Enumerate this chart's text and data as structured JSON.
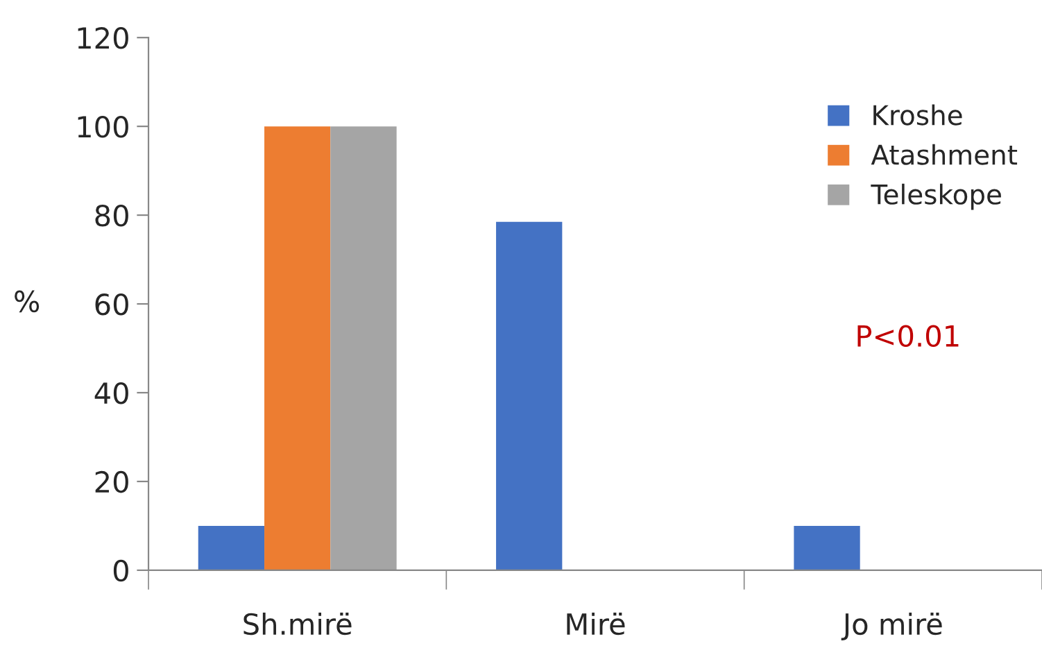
{
  "chart_data": {
    "type": "bar",
    "ylabel": "%",
    "categories": [
      "Sh.mirë",
      "Mirë",
      "Jo mirë"
    ],
    "series": [
      {
        "name": "Kroshe",
        "color": "#4472c4",
        "values": [
          10,
          78.5,
          10
        ]
      },
      {
        "name": "Atashment",
        "color": "#ed7d31",
        "values": [
          100,
          0,
          0
        ]
      },
      {
        "name": "Teleskope",
        "color": "#a5a5a5",
        "values": [
          100,
          0,
          0
        ]
      }
    ],
    "ylim": [
      0,
      120
    ],
    "yticks": [
      0,
      20,
      40,
      60,
      80,
      100,
      120
    ],
    "grid": false,
    "legend": "top right",
    "annotations": [
      "P<0.01"
    ]
  }
}
